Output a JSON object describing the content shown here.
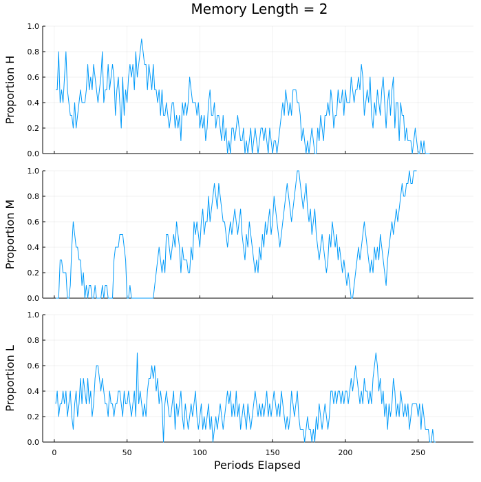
{
  "chart_data": {
    "type": "line",
    "title": "Memory Length = 2",
    "xlabel": "Periods Elapsed",
    "xlim": [
      -8,
      288
    ],
    "xticks": [
      0,
      50,
      100,
      150,
      200,
      250
    ],
    "ylim": [
      0,
      1
    ],
    "yticks": [
      0.0,
      0.2,
      0.4,
      0.6,
      0.8,
      1.0
    ],
    "ytick_labels": [
      "0.0",
      "0.2",
      "0.4",
      "0.6",
      "0.8",
      "1.0"
    ],
    "grid": true,
    "legend": "none",
    "color": "#009af9",
    "x_start": 1,
    "panels": [
      {
        "ylabel": "Proportion H",
        "values": [
          0.5,
          0.5,
          0.8,
          0.4,
          0.5,
          0.4,
          0.6,
          0.8,
          0.5,
          0.4,
          0.3,
          0.3,
          0.2,
          0.4,
          0.2,
          0.3,
          0.4,
          0.5,
          0.4,
          0.4,
          0.4,
          0.5,
          0.7,
          0.5,
          0.6,
          0.5,
          0.7,
          0.6,
          0.5,
          0.4,
          0.5,
          0.6,
          0.8,
          0.4,
          0.5,
          0.5,
          0.7,
          0.5,
          0.6,
          0.7,
          0.6,
          0.3,
          0.5,
          0.6,
          0.4,
          0.2,
          0.6,
          0.3,
          0.5,
          0.4,
          0.6,
          0.7,
          0.6,
          0.7,
          0.5,
          0.8,
          0.6,
          0.7,
          0.8,
          0.9,
          0.8,
          0.7,
          0.7,
          0.5,
          0.7,
          0.6,
          0.5,
          0.7,
          0.5,
          0.5,
          0.4,
          0.5,
          0.3,
          0.5,
          0.3,
          0.3,
          0.4,
          0.3,
          0.2,
          0.3,
          0.4,
          0.4,
          0.2,
          0.3,
          0.2,
          0.3,
          0.1,
          0.4,
          0.3,
          0.4,
          0.3,
          0.4,
          0.6,
          0.5,
          0.4,
          0.4,
          0.4,
          0.3,
          0.4,
          0.2,
          0.3,
          0.2,
          0.3,
          0.1,
          0.2,
          0.4,
          0.5,
          0.3,
          0.3,
          0.4,
          0.2,
          0.3,
          0.3,
          0.2,
          0.1,
          0.3,
          0.1,
          0.2,
          0.0,
          0.1,
          0.0,
          0.2,
          0.2,
          0.1,
          0.2,
          0.3,
          0.2,
          0.1,
          0.1,
          0.2,
          0.0,
          0.1,
          0.0,
          0.1,
          0.2,
          0.0,
          0.1,
          0.2,
          0.1,
          0.0,
          0.1,
          0.2,
          0.2,
          0.1,
          0.2,
          0.1,
          0.0,
          0.2,
          0.1,
          0.0,
          0.1,
          0.1,
          0.0,
          0.1,
          0.2,
          0.3,
          0.4,
          0.3,
          0.5,
          0.4,
          0.3,
          0.4,
          0.3,
          0.5,
          0.5,
          0.5,
          0.4,
          0.4,
          0.3,
          0.1,
          0.2,
          0.1,
          0.0,
          0.1,
          0.0,
          0.1,
          0.2,
          0.1,
          0.0,
          0.0,
          0.2,
          0.1,
          0.3,
          0.2,
          0.1,
          0.3,
          0.3,
          0.4,
          0.3,
          0.5,
          0.4,
          0.2,
          0.3,
          0.3,
          0.5,
          0.4,
          0.4,
          0.5,
          0.3,
          0.5,
          0.4,
          0.4,
          0.4,
          0.6,
          0.5,
          0.4,
          0.5,
          0.5,
          0.6,
          0.5,
          0.7,
          0.6,
          0.3,
          0.4,
          0.5,
          0.4,
          0.6,
          0.3,
          0.2,
          0.4,
          0.3,
          0.5,
          0.4,
          0.3,
          0.5,
          0.6,
          0.4,
          0.2,
          0.4,
          0.5,
          0.3,
          0.5,
          0.6,
          0.2,
          0.4,
          0.4,
          0.1,
          0.4,
          0.3,
          0.3,
          0.1,
          0.2,
          0.1,
          0.1,
          0.1,
          0.0,
          0.1,
          0.2,
          0.1,
          0.0,
          0.0,
          0.1,
          0.0,
          0.1,
          0.0,
          0.0,
          0.0,
          0.0
        ]
      },
      {
        "ylabel": "Proportion M",
        "values": [
          0.0,
          0.0,
          0.0,
          0.3,
          0.3,
          0.2,
          0.2,
          0.2,
          0.0,
          0.0,
          0.1,
          0.4,
          0.6,
          0.5,
          0.4,
          0.4,
          0.3,
          0.3,
          0.1,
          0.2,
          0.0,
          0.1,
          0.0,
          0.1,
          0.1,
          0.0,
          0.0,
          0.1,
          0.0,
          0.0,
          0.0,
          0.0,
          0.1,
          0.0,
          0.1,
          0.1,
          0.0,
          0.0,
          0.0,
          0.0,
          0.3,
          0.4,
          0.4,
          0.4,
          0.5,
          0.5,
          0.5,
          0.4,
          0.3,
          0.0,
          0.0,
          0.1,
          0.0,
          0.0,
          0.0,
          0.0,
          0.0,
          0.0,
          0.0,
          0.0,
          0.0,
          0.0,
          0.0,
          0.0,
          0.0,
          0.0,
          0.0,
          0.0,
          0.1,
          0.2,
          0.3,
          0.4,
          0.3,
          0.2,
          0.3,
          0.2,
          0.5,
          0.5,
          0.4,
          0.3,
          0.4,
          0.5,
          0.4,
          0.6,
          0.5,
          0.4,
          0.2,
          0.4,
          0.3,
          0.3,
          0.3,
          0.2,
          0.2,
          0.4,
          0.3,
          0.6,
          0.5,
          0.6,
          0.5,
          0.4,
          0.6,
          0.7,
          0.5,
          0.6,
          0.6,
          0.8,
          0.6,
          0.7,
          0.8,
          0.9,
          0.8,
          0.7,
          0.9,
          0.8,
          0.7,
          0.6,
          0.6,
          0.5,
          0.4,
          0.5,
          0.6,
          0.5,
          0.6,
          0.7,
          0.6,
          0.5,
          0.6,
          0.7,
          0.5,
          0.4,
          0.3,
          0.5,
          0.4,
          0.6,
          0.5,
          0.4,
          0.3,
          0.2,
          0.3,
          0.2,
          0.4,
          0.3,
          0.5,
          0.4,
          0.6,
          0.5,
          0.6,
          0.7,
          0.5,
          0.6,
          0.8,
          0.7,
          0.6,
          0.5,
          0.4,
          0.5,
          0.6,
          0.7,
          0.8,
          0.9,
          0.8,
          0.7,
          0.6,
          0.7,
          0.8,
          0.9,
          1.0,
          1.0,
          0.9,
          0.8,
          0.7,
          0.8,
          0.9,
          0.7,
          0.6,
          0.7,
          0.5,
          0.6,
          0.7,
          0.5,
          0.4,
          0.3,
          0.4,
          0.5,
          0.4,
          0.3,
          0.2,
          0.3,
          0.5,
          0.4,
          0.6,
          0.5,
          0.4,
          0.5,
          0.3,
          0.4,
          0.3,
          0.2,
          0.3,
          0.2,
          0.1,
          0.2,
          0.1,
          0.0,
          0.0,
          0.1,
          0.2,
          0.3,
          0.4,
          0.3,
          0.4,
          0.5,
          0.6,
          0.5,
          0.4,
          0.3,
          0.2,
          0.3,
          0.2,
          0.4,
          0.3,
          0.4,
          0.3,
          0.5,
          0.4,
          0.3,
          0.2,
          0.1,
          0.3,
          0.4,
          0.5,
          0.6,
          0.5,
          0.6,
          0.7,
          0.6,
          0.7,
          0.8,
          0.9,
          0.8,
          0.8,
          0.9,
          0.9,
          1.0,
          0.9,
          0.9,
          1.0,
          1.0,
          1.0
        ]
      },
      {
        "ylabel": "Proportion L",
        "values": [
          0.3,
          0.4,
          0.2,
          0.3,
          0.3,
          0.4,
          0.3,
          0.4,
          0.2,
          0.3,
          0.4,
          0.2,
          0.1,
          0.3,
          0.4,
          0.2,
          0.3,
          0.5,
          0.3,
          0.5,
          0.4,
          0.3,
          0.5,
          0.3,
          0.4,
          0.2,
          0.3,
          0.5,
          0.6,
          0.6,
          0.5,
          0.4,
          0.5,
          0.4,
          0.3,
          0.3,
          0.2,
          0.4,
          0.3,
          0.3,
          0.2,
          0.3,
          0.3,
          0.4,
          0.4,
          0.3,
          0.2,
          0.4,
          0.3,
          0.3,
          0.4,
          0.3,
          0.2,
          0.3,
          0.4,
          0.2,
          0.7,
          0.3,
          0.4,
          0.3,
          0.2,
          0.3,
          0.2,
          0.4,
          0.5,
          0.5,
          0.6,
          0.5,
          0.6,
          0.4,
          0.5,
          0.3,
          0.4,
          0.3,
          0.0,
          0.3,
          0.4,
          0.3,
          0.2,
          0.2,
          0.3,
          0.4,
          0.1,
          0.3,
          0.2,
          0.3,
          0.4,
          0.2,
          0.1,
          0.3,
          0.2,
          0.1,
          0.2,
          0.3,
          0.2,
          0.3,
          0.4,
          0.2,
          0.1,
          0.2,
          0.3,
          0.1,
          0.2,
          0.1,
          0.2,
          0.3,
          0.1,
          0.2,
          0.0,
          0.1,
          0.2,
          0.1,
          0.2,
          0.3,
          0.2,
          0.1,
          0.2,
          0.3,
          0.4,
          0.3,
          0.4,
          0.2,
          0.3,
          0.2,
          0.4,
          0.2,
          0.3,
          0.1,
          0.2,
          0.3,
          0.2,
          0.1,
          0.3,
          0.2,
          0.1,
          0.2,
          0.3,
          0.4,
          0.3,
          0.2,
          0.3,
          0.2,
          0.3,
          0.2,
          0.3,
          0.4,
          0.2,
          0.3,
          0.2,
          0.3,
          0.4,
          0.3,
          0.2,
          0.3,
          0.2,
          0.4,
          0.3,
          0.2,
          0.1,
          0.2,
          0.1,
          0.2,
          0.4,
          0.3,
          0.2,
          0.3,
          0.4,
          0.2,
          0.1,
          0.1,
          0.1,
          0.0,
          0.1,
          0.2,
          0.1,
          0.1,
          0.0,
          0.1,
          0.0,
          0.2,
          0.1,
          0.3,
          0.2,
          0.1,
          0.2,
          0.3,
          0.2,
          0.1,
          0.2,
          0.4,
          0.4,
          0.3,
          0.4,
          0.3,
          0.4,
          0.4,
          0.3,
          0.4,
          0.3,
          0.4,
          0.4,
          0.3,
          0.4,
          0.5,
          0.4,
          0.5,
          0.6,
          0.5,
          0.4,
          0.3,
          0.4,
          0.3,
          0.5,
          0.4,
          0.4,
          0.3,
          0.4,
          0.3,
          0.5,
          0.6,
          0.7,
          0.6,
          0.4,
          0.5,
          0.3,
          0.4,
          0.2,
          0.3,
          0.1,
          0.3,
          0.2,
          0.3,
          0.5,
          0.4,
          0.2,
          0.3,
          0.2,
          0.4,
          0.3,
          0.2,
          0.3,
          0.2,
          0.3,
          0.1,
          0.2,
          0.3,
          0.3,
          0.3,
          0.3,
          0.2,
          0.3,
          0.1,
          0.3,
          0.2,
          0.1,
          0.1,
          0.1,
          0.0,
          0.0,
          0.1,
          0.0,
          0.0
        ]
      }
    ]
  }
}
